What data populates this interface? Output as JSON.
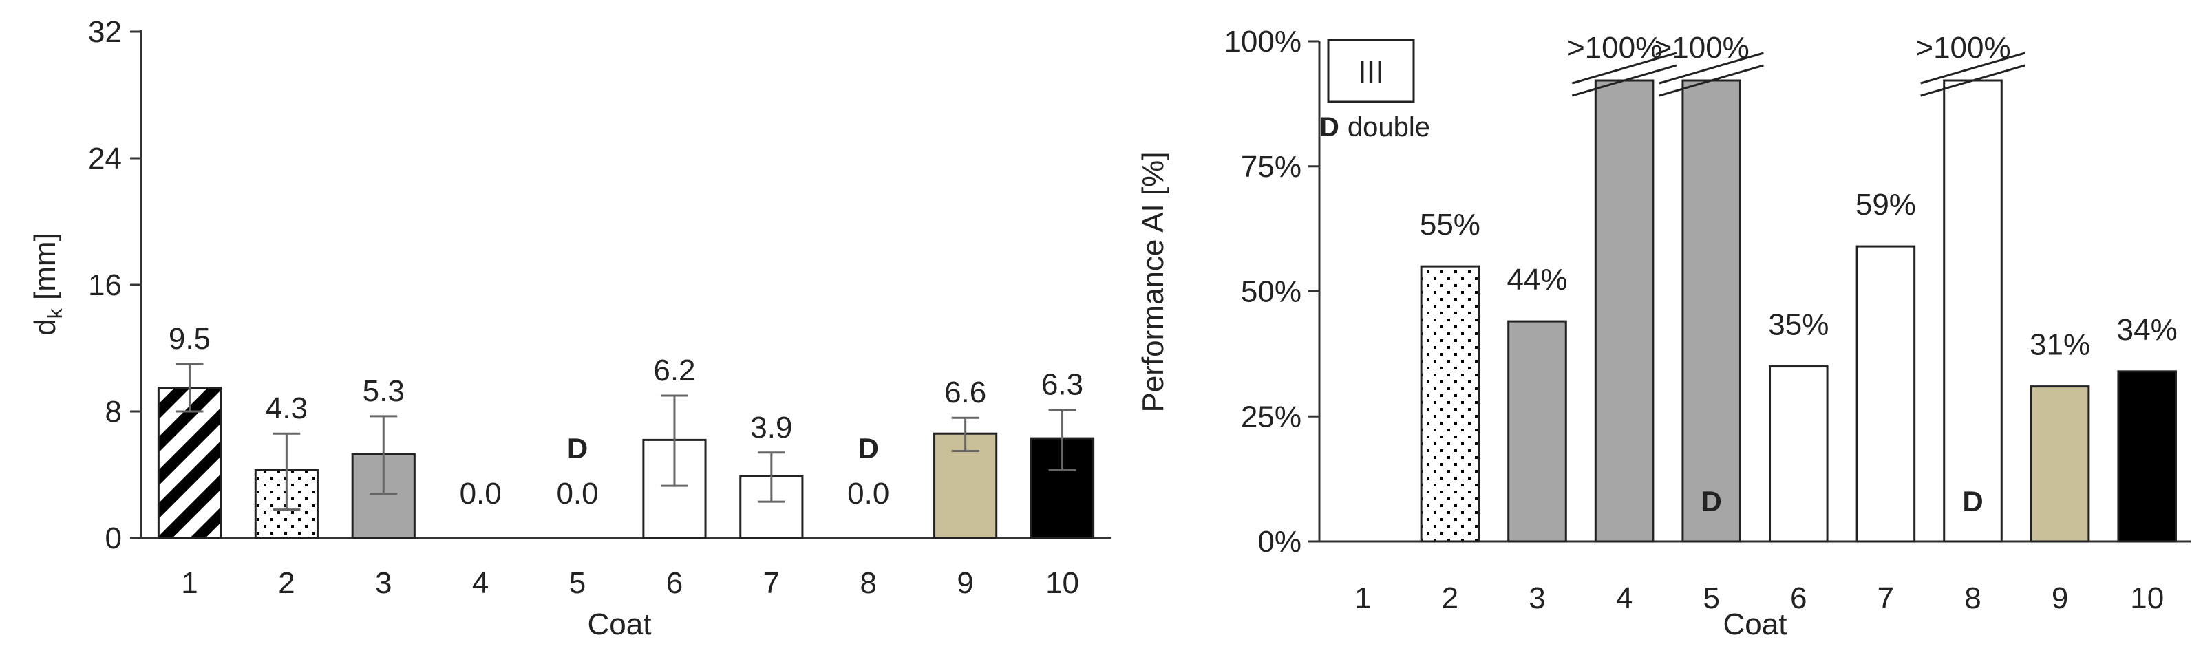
{
  "colors": {
    "gray": "#a6a6a6",
    "beige": "#c9bf99",
    "black": "#000000",
    "white": "#ffffff",
    "outline": "#222222"
  },
  "chart_data": [
    {
      "type": "bar",
      "title": "",
      "xlabel": "Coat",
      "ylabel": "d",
      "ylabel_sub": "k",
      "ylabel_unit": " [mm]",
      "ylim": [
        0,
        32
      ],
      "yticks": [
        0,
        8,
        16,
        24,
        32
      ],
      "ytick_labels": [
        "0",
        "8",
        "16",
        "24",
        "32"
      ],
      "categories": [
        "1",
        "2",
        "3",
        "4",
        "5",
        "6",
        "7",
        "8",
        "9",
        "10"
      ],
      "values": [
        9.5,
        4.3,
        5.3,
        0.0,
        0.0,
        6.2,
        3.9,
        0.0,
        6.6,
        6.3
      ],
      "data_labels": [
        "9.5",
        "4.3",
        "5.3",
        "0.0",
        "0.0",
        "6.2",
        "3.9",
        "0.0",
        "6.6",
        "6.3"
      ],
      "error_low": [
        8.0,
        1.8,
        2.8,
        null,
        null,
        3.3,
        2.3,
        null,
        5.5,
        4.3
      ],
      "error_high": [
        11.0,
        6.6,
        7.7,
        null,
        null,
        9.0,
        5.4,
        null,
        7.6,
        8.1
      ],
      "fills": [
        "hatch",
        "dots",
        "gray",
        "none",
        "none",
        "white",
        "white",
        "none",
        "beige",
        "black"
      ],
      "double_marker": "D",
      "double_coats": [
        "5",
        "8"
      ],
      "grid": false
    },
    {
      "type": "bar",
      "title": "",
      "panel_label": "III",
      "legend_note_marker": "D",
      "legend_note_text": "double",
      "xlabel": "Coat",
      "ylabel": "Performance AI [%]",
      "ylim": [
        0,
        100
      ],
      "yticks": [
        0,
        25,
        50,
        75,
        100
      ],
      "ytick_labels": [
        "0%",
        "25%",
        "50%",
        "75%",
        "100%"
      ],
      "categories": [
        "1",
        "2",
        "3",
        "4",
        "5",
        "6",
        "7",
        "8",
        "9",
        "10"
      ],
      "values": [
        0,
        55,
        44,
        100,
        100,
        35,
        59,
        100,
        31,
        34
      ],
      "data_labels": [
        "",
        "55%",
        "44%",
        ">100%",
        ">100%",
        "35%",
        "59%",
        ">100%",
        "31%",
        "34%"
      ],
      "exceeds": [
        false,
        false,
        false,
        true,
        true,
        false,
        false,
        true,
        false,
        false
      ],
      "fills": [
        "none",
        "dots",
        "gray",
        "gray",
        "gray",
        "white",
        "white",
        "white",
        "beige",
        "black"
      ],
      "double_marker": "D",
      "double_coats": [
        "5",
        "8"
      ],
      "grid": false
    }
  ]
}
